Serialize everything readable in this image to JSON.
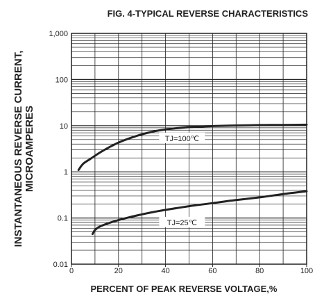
{
  "chart_data": {
    "type": "line",
    "title": "FIG. 4-TYPICAL REVERSE CHARACTERISTICS",
    "xlabel": "PERCENT OF PEAK REVERSE VOLTAGE,%",
    "ylabel_line1": "INSTANTANEOUS REVERSE CURRENT,",
    "ylabel_line2": "MICROAMPERES",
    "xlim": [
      0,
      100
    ],
    "ylim": [
      0.01,
      1000
    ],
    "yscale": "log",
    "grid": true,
    "x_ticks": [
      "0",
      "20",
      "40",
      "60",
      "80",
      "100"
    ],
    "y_ticks": [
      "0.01",
      "0.1",
      "1",
      "10",
      "100",
      "1,000"
    ],
    "series": [
      {
        "name": "TJ=100℃",
        "x": [
          3,
          5,
          8,
          12,
          16,
          20,
          25,
          30,
          35,
          40,
          50,
          60,
          70,
          80,
          90,
          100
        ],
        "y": [
          1.1,
          1.5,
          1.9,
          2.6,
          3.4,
          4.3,
          5.4,
          6.5,
          7.5,
          8.3,
          9.3,
          9.8,
          10.1,
          10.3,
          10.4,
          10.5
        ]
      },
      {
        "name": "TJ=25℃",
        "x": [
          9,
          10,
          12,
          15,
          20,
          25,
          30,
          35,
          40,
          50,
          60,
          70,
          80,
          90,
          100
        ],
        "y": [
          0.045,
          0.055,
          0.065,
          0.075,
          0.09,
          0.105,
          0.12,
          0.135,
          0.15,
          0.18,
          0.21,
          0.245,
          0.28,
          0.33,
          0.38
        ]
      }
    ]
  },
  "colors": {
    "ink": "#222222",
    "grid": "#222222",
    "background": "#ffffff"
  }
}
